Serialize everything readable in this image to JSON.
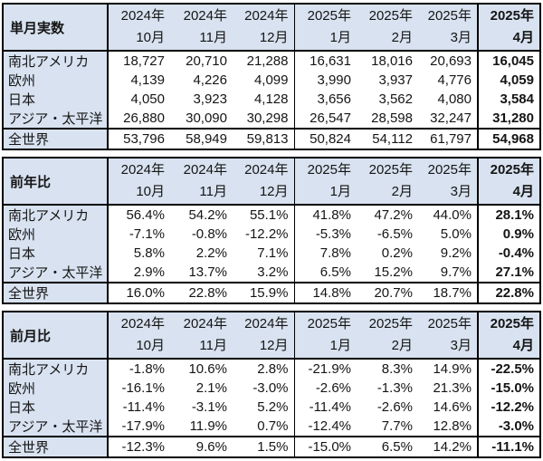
{
  "colors": {
    "header_bg": "#d8e2f0",
    "border": "#000000",
    "text": "#151515"
  },
  "columns": [
    {
      "year": "2024年",
      "month": "10月"
    },
    {
      "year": "2024年",
      "month": "11月"
    },
    {
      "year": "2024年",
      "month": "12月"
    },
    {
      "year": "2025年",
      "month": "1月"
    },
    {
      "year": "2025年",
      "month": "2月"
    },
    {
      "year": "2025年",
      "month": "3月"
    },
    {
      "year": "2025年",
      "month": "4月"
    }
  ],
  "tables": [
    {
      "id": "monthly-actuals",
      "title": "単月実数",
      "rows": [
        {
          "label": "南北アメリカ",
          "values": [
            "18,727",
            "20,710",
            "21,288",
            "16,631",
            "18,016",
            "20,693",
            "16,045"
          ]
        },
        {
          "label": "欧州",
          "values": [
            "4,139",
            "4,226",
            "4,099",
            "3,990",
            "3,937",
            "4,776",
            "4,059"
          ]
        },
        {
          "label": "日本",
          "values": [
            "4,050",
            "3,923",
            "4,128",
            "3,656",
            "3,562",
            "4,080",
            "3,584"
          ]
        },
        {
          "label": "アジア・太平洋",
          "values": [
            "26,880",
            "30,090",
            "30,298",
            "26,547",
            "28,598",
            "32,247",
            "31,280"
          ]
        },
        {
          "label": "全世界",
          "is_total": true,
          "values": [
            "53,796",
            "58,949",
            "59,813",
            "50,824",
            "54,112",
            "61,797",
            "54,968"
          ]
        }
      ]
    },
    {
      "id": "year-over-year",
      "title": "前年比",
      "rows": [
        {
          "label": "南北アメリカ",
          "values": [
            "56.4%",
            "54.2%",
            "55.1%",
            "41.8%",
            "47.2%",
            "44.0%",
            "28.1%"
          ]
        },
        {
          "label": "欧州",
          "values": [
            "-7.1%",
            "-0.8%",
            "-12.2%",
            "-5.3%",
            "-6.5%",
            "5.0%",
            "0.9%"
          ]
        },
        {
          "label": "日本",
          "values": [
            "5.8%",
            "2.2%",
            "7.1%",
            "7.8%",
            "0.2%",
            "9.2%",
            "-0.4%"
          ]
        },
        {
          "label": "アジア・太平洋",
          "values": [
            "2.9%",
            "13.7%",
            "3.2%",
            "6.5%",
            "15.2%",
            "9.7%",
            "27.1%"
          ]
        },
        {
          "label": "全世界",
          "is_total": true,
          "values": [
            "16.0%",
            "22.8%",
            "15.9%",
            "14.8%",
            "20.7%",
            "18.7%",
            "22.8%"
          ]
        }
      ]
    },
    {
      "id": "month-over-month",
      "title": "前月比",
      "rows": [
        {
          "label": "南北アメリカ",
          "values": [
            "-1.8%",
            "10.6%",
            "2.8%",
            "-21.9%",
            "8.3%",
            "14.9%",
            "-22.5%"
          ]
        },
        {
          "label": "欧州",
          "values": [
            "-16.1%",
            "2.1%",
            "-3.0%",
            "-2.6%",
            "-1.3%",
            "21.3%",
            "-15.0%"
          ]
        },
        {
          "label": "日本",
          "values": [
            "-11.4%",
            "-3.1%",
            "5.2%",
            "-11.4%",
            "-2.6%",
            "14.6%",
            "-12.2%"
          ]
        },
        {
          "label": "アジア・太平洋",
          "values": [
            "-17.9%",
            "11.9%",
            "0.7%",
            "-12.4%",
            "7.7%",
            "12.8%",
            "-3.0%"
          ]
        },
        {
          "label": "全世界",
          "is_total": true,
          "values": [
            "-12.3%",
            "9.6%",
            "1.5%",
            "-15.0%",
            "6.5%",
            "14.2%",
            "-11.1%"
          ]
        }
      ]
    }
  ]
}
